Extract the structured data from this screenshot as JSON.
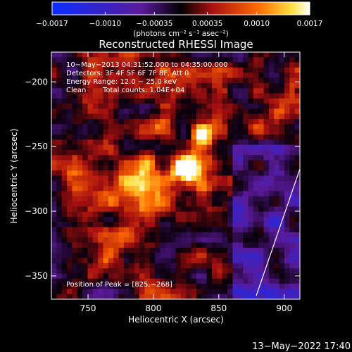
{
  "colorbar": {
    "tick_labels": [
      "−0.0017",
      "−0.0010",
      "−0.00035",
      "0.00035",
      "0.0010",
      "0.0017"
    ],
    "tick_values": [
      -0.0017,
      -0.001,
      -0.00035,
      0.00035,
      0.001,
      0.0017
    ],
    "range": [
      -0.0017,
      0.0017
    ],
    "units_label": "(photons cm⁻² s⁻¹ asec⁻²)"
  },
  "chart_data": {
    "type": "heatmap",
    "title": "Reconstructed RHESSI Image",
    "xlabel": "Heliocentric X (arcsec)",
    "ylabel": "Heliocentric Y (arcsec)",
    "xlim": [
      722,
      912
    ],
    "ylim": [
      -368,
      -177
    ],
    "x_ticks": [
      750,
      800,
      850,
      900
    ],
    "x_tick_labels": [
      "750",
      "800",
      "850",
      "900"
    ],
    "y_ticks": [
      -200,
      -250,
      -300,
      -350
    ],
    "y_tick_labels": [
      "−200",
      "−250",
      "−300",
      "−350"
    ],
    "peak_position": [
      825,
      -268
    ],
    "annotations": [
      "10−May−2013 04:31:52.000 to 04:35:00.000",
      "Detectors: 3F 4F 5F 6F 7F 8F, Att 0",
      "Energy Range: 12.0 − 25.0 keV",
      "Clean",
      "Total counts: 1.04E+04",
      "Position of Peak = [825,−268]"
    ],
    "colors": {
      "colormap": [
        "#0a2eff",
        "#3a1a8a",
        "#000000",
        "#a01010",
        "#ff6a00",
        "#ffff80",
        "#ffffff"
      ],
      "limb_line": "#ffffff"
    }
  },
  "footer_date": "13−May−2022 17:40"
}
